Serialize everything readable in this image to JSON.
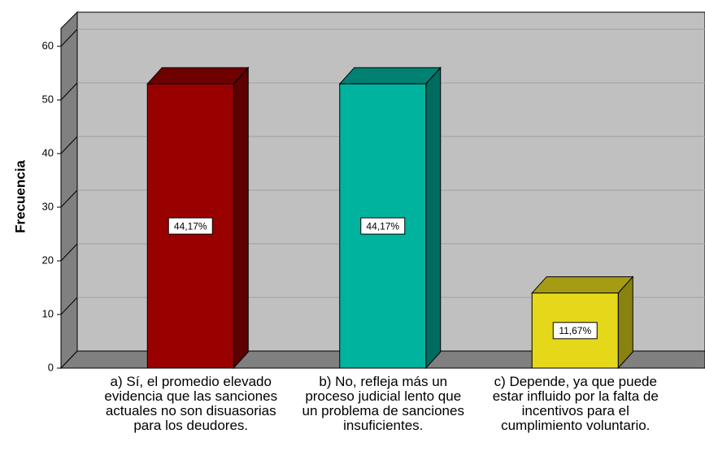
{
  "chart_data": {
    "type": "bar3d",
    "y_label": "Frecuencia",
    "categories": [
      "a) Sí, el promedio elevado evidencia que las sanciones actuales no son disuasorias para los deudores.",
      "b) No, refleja más un proceso judicial lento que un problema de sanciones insuficientes.",
      "c) Depende, ya que puede estar influido por la falta de incentivos para el cumplimiento voluntario."
    ],
    "values": [
      53,
      53,
      14
    ],
    "value_labels": [
      "44,17%",
      "44,17%",
      "11,67%"
    ],
    "colors": [
      "#990000",
      "#00b39e",
      "#e5d81a"
    ],
    "ylim": [
      0,
      60
    ],
    "yticks": [
      0,
      10,
      20,
      30,
      40,
      50,
      60
    ],
    "grid": true
  }
}
